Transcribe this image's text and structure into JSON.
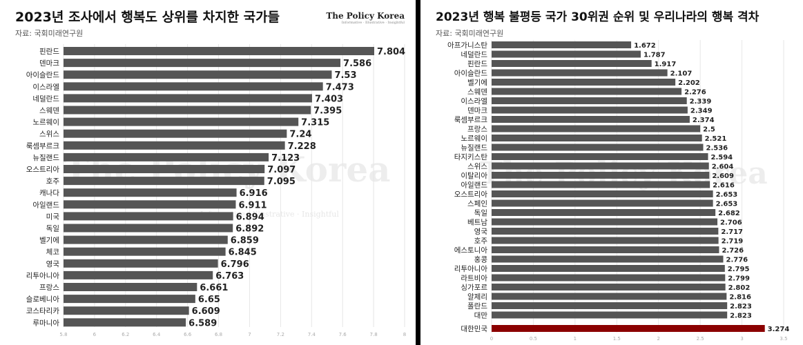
{
  "left": {
    "title": "2023년 조사에서 행복도 상위를 차지한 국가들",
    "subtitle": "자료: 국회미래연구원",
    "brand": "The Policy Korea",
    "brand_tagline": "Informative · Illustrative · Insightful",
    "watermark": "The Policy Korea",
    "watermark_tagline": "Informative · Illustrative · Insightful"
  },
  "right": {
    "title": "2023년 행복 불평등 국가 30위권 순위 및 우리나라의 행복 격차",
    "subtitle": "자료: 국회미래연구원",
    "watermark": "The Policy Korea"
  },
  "colors": {
    "bar": "#555555",
    "highlight": "#8b0000",
    "grid": "#e6e6e6",
    "panel_gap": "#000000"
  },
  "chart_data": [
    {
      "type": "bar",
      "orientation": "horizontal",
      "title": "2023년 조사에서 행복도 상위를 차지한 국가들",
      "categories": [
        "핀란드",
        "덴마크",
        "아이슬란드",
        "이스라엘",
        "네덜란드",
        "스웨덴",
        "노르웨이",
        "스위스",
        "룩셈부르크",
        "뉴질랜드",
        "오스트리아",
        "호주",
        "캐나다",
        "아일랜드",
        "미국",
        "독일",
        "벨기에",
        "체코",
        "영국",
        "리투아니아",
        "프랑스",
        "슬로베니아",
        "코스타리카",
        "루마니아"
      ],
      "values": [
        7.804,
        7.586,
        7.53,
        7.473,
        7.403,
        7.395,
        7.315,
        7.24,
        7.228,
        7.123,
        7.097,
        7.095,
        6.916,
        6.911,
        6.894,
        6.892,
        6.859,
        6.845,
        6.796,
        6.763,
        6.661,
        6.65,
        6.609,
        6.589
      ],
      "value_labels": [
        "7.804",
        "7.586",
        "7.53",
        "7.473",
        "7.403",
        "7.395",
        "7.315",
        "7.24",
        "7.228",
        "7.123",
        "7.097",
        "7.095",
        "6.916",
        "6.911",
        "6.894",
        "6.892",
        "6.859",
        "6.845",
        "6.796",
        "6.763",
        "6.661",
        "6.65",
        "6.609",
        "6.589"
      ],
      "xlim": [
        5.8,
        8.0
      ],
      "xticks": [
        "5.8",
        "6",
        "6.2",
        "6.4",
        "6.6",
        "6.8",
        "7",
        "7.2",
        "7.4",
        "7.6",
        "7.8",
        "8"
      ],
      "grid": true
    },
    {
      "type": "bar",
      "orientation": "horizontal",
      "title": "2023년 행복 불평등 국가 30위권 순위 및 우리나라의 행복 격차",
      "categories": [
        "아프가니스탄",
        "네덜란드",
        "핀란드",
        "아이슬란드",
        "벨기에",
        "스웨덴",
        "이스라엘",
        "덴마크",
        "룩셈부르크",
        "프랑스",
        "노르웨이",
        "뉴질랜드",
        "타지키스탄",
        "스위스",
        "이탈리아",
        "아일랜드",
        "오스트리아",
        "스페인",
        "독일",
        "베트남",
        "영국",
        "호주",
        "에스토니아",
        "홍콩",
        "리투아니아",
        "라트비아",
        "싱가포르",
        "알제리",
        "폴란드",
        "대만"
      ],
      "values": [
        1.672,
        1.787,
        1.917,
        2.107,
        2.202,
        2.276,
        2.339,
        2.349,
        2.374,
        2.5,
        2.521,
        2.536,
        2.594,
        2.604,
        2.609,
        2.616,
        2.653,
        2.653,
        2.682,
        2.706,
        2.717,
        2.719,
        2.726,
        2.776,
        2.795,
        2.799,
        2.802,
        2.816,
        2.823,
        2.823
      ],
      "value_labels": [
        "1.672",
        "1.787",
        "1.917",
        "2.107",
        "2.202",
        "2.276",
        "2.339",
        "2.349",
        "2.374",
        "2.5",
        "2.521",
        "2.536",
        "2.594",
        "2.604",
        "2.609",
        "2.616",
        "2.653",
        "2.653",
        "2.682",
        "2.706",
        "2.717",
        "2.719",
        "2.726",
        "2.776",
        "2.795",
        "2.799",
        "2.802",
        "2.816",
        "2.823",
        "2.823"
      ],
      "highlight": {
        "category": "대한민국",
        "value": 3.274,
        "label": "3.274"
      },
      "xlim": [
        0,
        3.5
      ],
      "xticks": [
        "0",
        "0.5",
        "1",
        "1.5",
        "2",
        "2.5",
        "3",
        "3.5"
      ],
      "grid": true
    }
  ]
}
